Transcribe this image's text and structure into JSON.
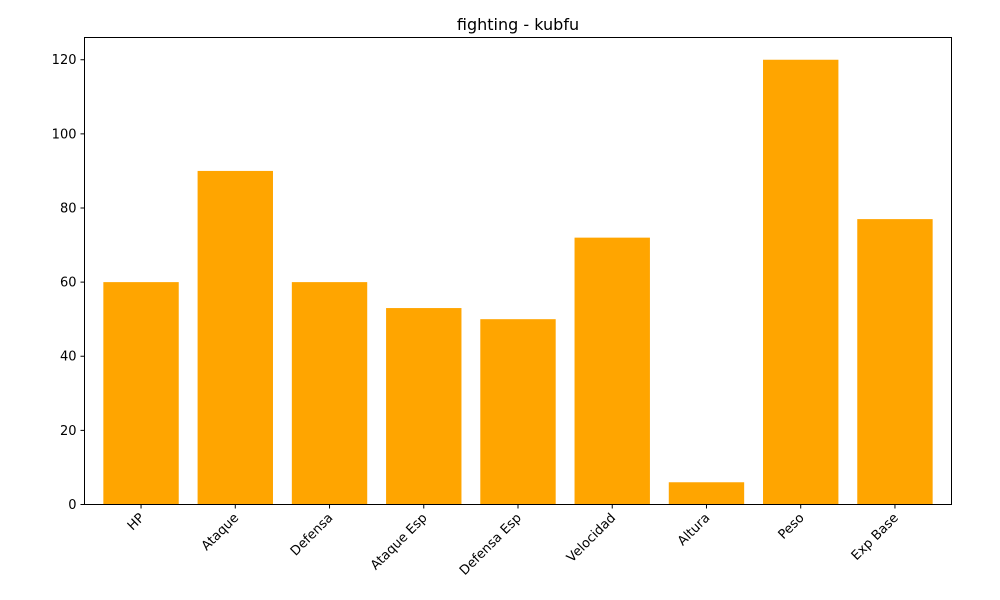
{
  "chart_data": {
    "type": "bar",
    "title": "fighting - kubfu",
    "xlabel": "",
    "ylabel": "",
    "categories": [
      "HP",
      "Ataque",
      "Defensa",
      "Ataque Esp",
      "Defensa Esp",
      "Velocidad",
      "Altura",
      "Peso",
      "Exp Base"
    ],
    "values": [
      60,
      90,
      60,
      53,
      50,
      72,
      6,
      120,
      77
    ],
    "ylim": [
      0,
      126
    ],
    "yticks": [
      0,
      20,
      40,
      60,
      80,
      100,
      120
    ],
    "bar_color": "#FFA500",
    "grid": false,
    "legend": "none"
  }
}
